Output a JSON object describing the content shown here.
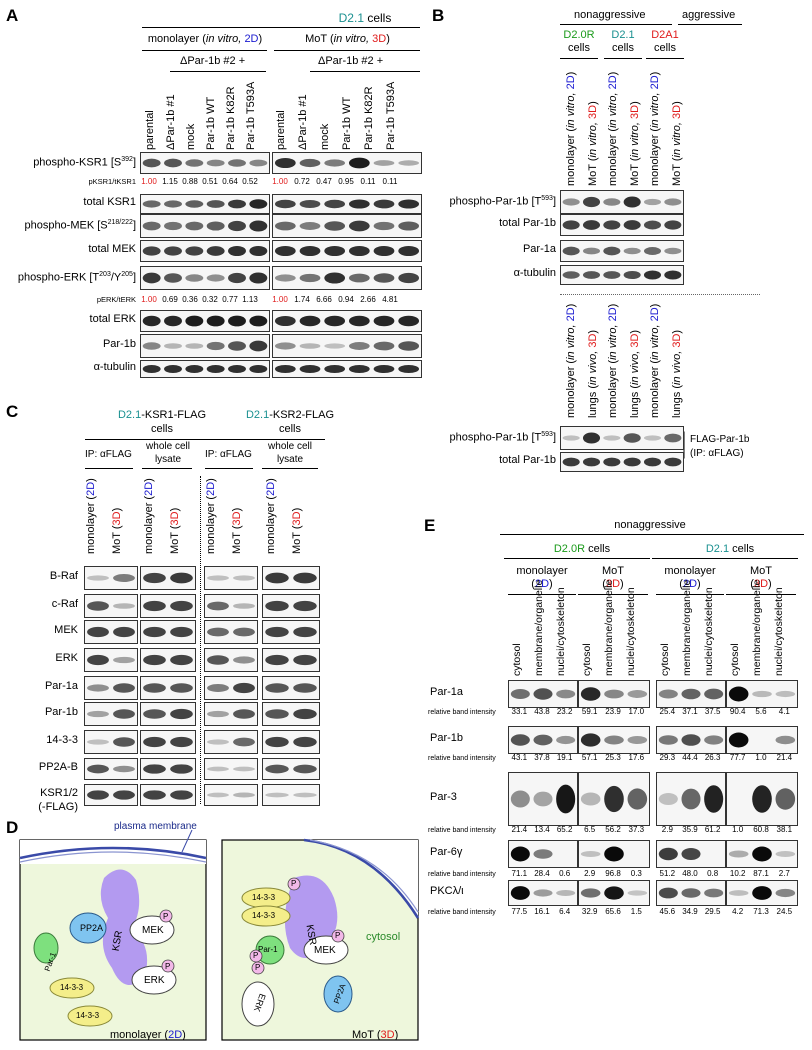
{
  "panels": {
    "A": {
      "letter": "A",
      "cell_line": "D2.1",
      "cells_word": "cells",
      "groups": [
        {
          "prefix": "monolayer (",
          "italic": "in vitro,",
          "dim": "2D",
          "suffix": ")"
        },
        {
          "prefix": "MoT (",
          "italic": "in vitro,",
          "dim": "3D",
          "suffix": ")"
        }
      ],
      "subgroup_label": "ΔPar-1b #2 +",
      "lanes": [
        "parental",
        "ΔPar-1b #1",
        "mock",
        "Par-1b WT",
        "Par-1b K82R",
        "Par-1b T593A"
      ],
      "rows": [
        {
          "label": "phospho-KSR1 [S",
          "sup": "392",
          "close": "]"
        },
        {
          "label": "total KSR1"
        },
        {
          "label": "phospho-MEK [S",
          "sup": "218/222",
          "close": "]"
        },
        {
          "label": "total MEK"
        },
        {
          "label": "phospho-ERK [T",
          "sup": "203",
          "mid": "/Y",
          "sup2": "205",
          "close": "]"
        },
        {
          "label": "total ERK"
        },
        {
          "label": "Par-1b"
        },
        {
          "label": "α-tubulin"
        }
      ],
      "ratio_rows": [
        {
          "label": "pKSR1/tKSR1",
          "left": [
            "1.00",
            "1.15",
            "0.88",
            "0.51",
            "0.64",
            "0.52"
          ],
          "right": [
            "1.00",
            "0.72",
            "0.47",
            "0.95",
            "0.11",
            "0.11"
          ]
        },
        {
          "label": "pERK/tERK",
          "left": [
            "1.00",
            "0.69",
            "0.36",
            "0.32",
            "0.77",
            "1.13"
          ],
          "right": [
            "1.00",
            "1.74",
            "6.66",
            "0.94",
            "2.66",
            "4.81"
          ]
        }
      ]
    },
    "B": {
      "letter": "B",
      "header_nonaggressive": "nonaggressive",
      "header_aggressive": "aggressive",
      "cells": [
        {
          "name": "D2.0R",
          "word": "cells",
          "color": "#1a9a1a"
        },
        {
          "name": "D2.1",
          "word": "cells",
          "color": "#1a9090"
        },
        {
          "name": "D2A1",
          "word": "cells",
          "color": "#e01b1b"
        }
      ],
      "lanes_top": [
        {
          "pre": "monolayer (",
          "it": "in vitro,",
          "dim": "2D"
        },
        {
          "pre": "MoT (",
          "it": "in vitro,",
          "dim": "3D"
        },
        {
          "pre": "monolayer (",
          "it": "in vitro,",
          "dim": "2D"
        },
        {
          "pre": "MoT (",
          "it": "in vitro,",
          "dim": "3D"
        },
        {
          "pre": "monolayer (",
          "it": "in vitro,",
          "dim": "2D"
        },
        {
          "pre": "MoT (",
          "it": "in vitro,",
          "dim": "3D"
        }
      ],
      "rows_top": [
        {
          "label": "phospho-Par-1b [T",
          "sup": "593",
          "close": "]"
        },
        {
          "label": "total Par-1b"
        },
        {
          "label": "Par-1a"
        },
        {
          "label": "α-tubulin"
        }
      ],
      "lanes_bottom": [
        {
          "pre": "monolayer (",
          "it": "in vitro,",
          "dim": "2D"
        },
        {
          "pre": "lungs (",
          "it": "in vivo,",
          "dim": "3D"
        },
        {
          "pre": "monolayer (",
          "it": "in vitro,",
          "dim": "2D"
        },
        {
          "pre": "lungs (",
          "it": "in vivo,",
          "dim": "3D"
        },
        {
          "pre": "monolayer (",
          "it": "in vitro,",
          "dim": "2D"
        },
        {
          "pre": "lungs (",
          "it": "in vivo,",
          "dim": "3D"
        }
      ],
      "rows_bottom": [
        {
          "label": "phospho-Par-1b [T",
          "sup": "593",
          "close": "]"
        },
        {
          "label": "total Par-1b"
        }
      ],
      "annot_line1": "FLAG-Par-1b",
      "annot_line2": "(IP: αFLAG)"
    },
    "C": {
      "letter": "C",
      "left_title_cell": "D2.1",
      "left_title_rest": "-KSR1-FLAG",
      "right_title_cell": "D2.1",
      "right_title_rest": "-KSR2-FLAG",
      "cells_word": "cells",
      "ip_label": "IP: αFLAG",
      "wcl_line1": "whole cell",
      "wcl_line2": "lysate",
      "lanes": [
        {
          "pre": "monolayer (",
          "dim": "2D",
          "post": ")"
        },
        {
          "pre": "MoT (",
          "dim": "3D",
          "post": ")"
        }
      ],
      "rows": [
        "B-Raf",
        "c-Raf",
        "MEK",
        "ERK",
        "Par-1a",
        "Par-1b",
        "14-3-3",
        "PP2A-B",
        "KSR1/2",
        "(-FLAG)"
      ]
    },
    "D": {
      "letter": "D",
      "membrane_label": "plasma membrane",
      "left": {
        "label_pre": "monolayer (",
        "dim": "2D",
        "label_post": ")",
        "pp2a": "PP2A",
        "ksr": "KSR",
        "mek": "MEK",
        "erk": "ERK",
        "par1": "Par-1",
        "p": "P",
        "a": "14-3-3",
        "b": "14-3-3"
      },
      "right": {
        "label_pre": "MoT (",
        "dim": "3D",
        "label_post": ")",
        "a": "14-3-3",
        "b": "14-3-3",
        "ksr": "KSR",
        "mek": "MEK",
        "par1": "Par-1",
        "erk": "ERK",
        "pp2a": "PP2A",
        "p": "P",
        "cytosol": "cytosol"
      }
    },
    "E": {
      "letter": "E",
      "header": "nonaggressive",
      "cell_groups": [
        {
          "name": "D2.0R",
          "word": "cells",
          "color": "#1a9a1a"
        },
        {
          "name": "D2.1",
          "word": "cells",
          "color": "#1a9090"
        }
      ],
      "conditions": [
        {
          "top": "monolayer",
          "dim": "2D"
        },
        {
          "top": "MoT",
          "dim": "3D"
        },
        {
          "top": "monolayer",
          "dim": "2D"
        },
        {
          "top": "MoT",
          "dim": "3D"
        }
      ],
      "fractions": [
        "cytosol",
        "membrane/organelle",
        "nuclei/cytoskeleton"
      ],
      "intensity_label": "relative band intensity",
      "rows": [
        {
          "label": "Par-1a",
          "values": [
            "33.1",
            "43.8",
            "23.2",
            "59.1",
            "23.9",
            "17.0",
            "25.4",
            "37.1",
            "37.5",
            "90.4",
            "5.6",
            "4.1"
          ]
        },
        {
          "label": "Par-1b",
          "values": [
            "43.1",
            "37.8",
            "19.1",
            "57.1",
            "25.3",
            "17.6",
            "29.3",
            "44.4",
            "26.3",
            "77.7",
            "1.0",
            "21.4"
          ]
        },
        {
          "label": "Par-3",
          "values": [
            "21.4",
            "13.4",
            "65.2",
            "6.5",
            "56.2",
            "37.3",
            "2.9",
            "35.9",
            "61.2",
            "1.0",
            "60.8",
            "38.1"
          ]
        },
        {
          "label": "Par-6γ",
          "values": [
            "71.1",
            "28.4",
            "0.6",
            "2.9",
            "96.8",
            "0.3",
            "51.2",
            "48.0",
            "0.8",
            "10.2",
            "87.1",
            "2.7"
          ]
        },
        {
          "label": "PKCλ/ι",
          "values": [
            "77.5",
            "16.1",
            "6.4",
            "32.9",
            "65.6",
            "1.5",
            "45.6",
            "34.9",
            "29.5",
            "4.2",
            "71.3",
            "24.5"
          ]
        }
      ]
    }
  },
  "colors": {
    "teal": "#1a9090",
    "blue": "#1a1ad0",
    "red": "#e01b1b",
    "green": "#1a9a1a",
    "purple": "#a98ee8",
    "ksr_fill": "#b39af0",
    "pp2a": "#7fc4f0",
    "par1": "#7ee07e",
    "yellow": "#f4ee8a",
    "p_pink": "#f2b8e8",
    "cytosol_bg": "#eef7dc"
  }
}
